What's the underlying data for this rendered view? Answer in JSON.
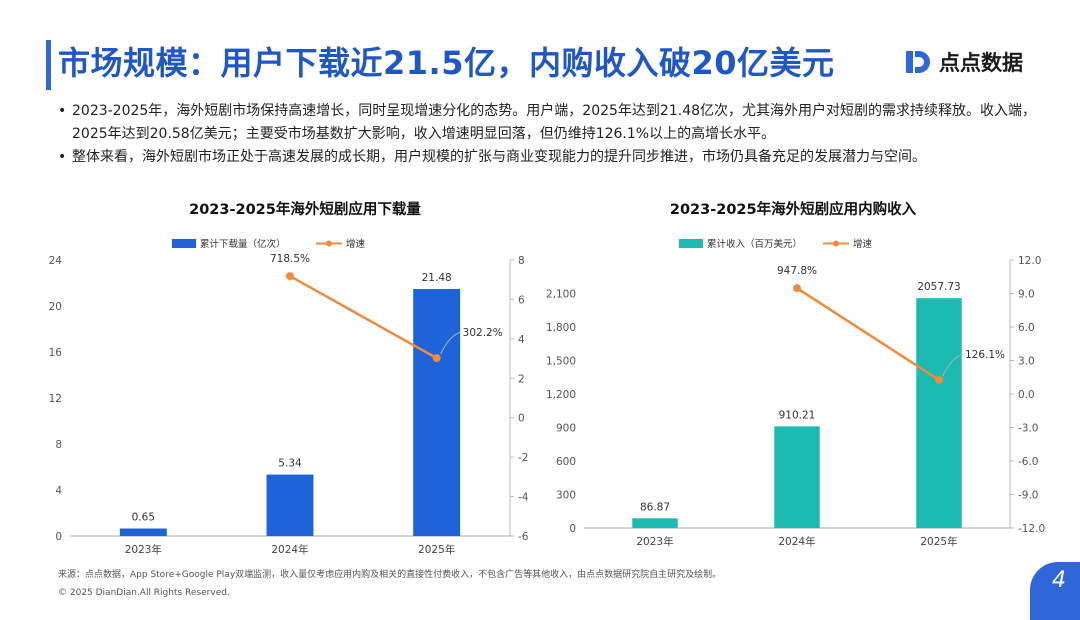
{
  "header": {
    "title": "市场规模：用户下载近21.5亿，内购收入破20亿美元",
    "logo_text": "点点数据",
    "accent_color": "#2f66d8"
  },
  "bullets": [
    "2023-2025年，海外短剧市场保持高速增长，同时呈现增速分化的态势。用户端，2025年达到21.48亿次，尤其海外用户对短剧的需求持续释放。收入端，2025年达到20.58亿美元；主要受市场基数扩大影响，收入增速明显回落，但仍维持126.1%以上的高增长水平。",
    "整体来看，海外短剧市场正处于高速发展的成长期，用户规模的扩张与商业变现能力的提升同步推进，市场仍具备充足的发展潜力与空间。"
  ],
  "chart_data": [
    {
      "type": "bar",
      "title": "2023-2025年海外短剧应用下载量",
      "categories": [
        "2023年",
        "2024年",
        "2025年"
      ],
      "series": [
        {
          "name": "累计下载量（亿次）",
          "type": "bar",
          "axis": "left",
          "color": "#1f63d9",
          "values": [
            0.65,
            5.34,
            21.48
          ],
          "labels": [
            "0.65",
            "5.34",
            "21.48"
          ]
        },
        {
          "name": "增速",
          "type": "line",
          "axis": "right",
          "color": "#f08a3c",
          "values": [
            null,
            7.185,
            3.022
          ],
          "labels": [
            "",
            "718.5%",
            "302.2%"
          ]
        }
      ],
      "ylim": [
        0,
        24
      ],
      "yticks": [
        "0",
        "4",
        "8",
        "12",
        "16",
        "20",
        "24"
      ],
      "y2lim": [
        -6,
        8
      ],
      "y2ticks": [
        "-6",
        "-4",
        "-2",
        "0",
        "2",
        "4",
        "6",
        "8"
      ],
      "legend": "top-center"
    },
    {
      "type": "bar",
      "title": "2023-2025年海外短剧应用内购收入",
      "categories": [
        "2023年",
        "2024年",
        "2025年"
      ],
      "series": [
        {
          "name": "累计收入（百万美元）",
          "type": "bar",
          "axis": "left",
          "color": "#1dbab2",
          "values": [
            86.87,
            910.21,
            2057.73
          ],
          "labels": [
            "86.87",
            "910.21",
            "2057.73"
          ]
        },
        {
          "name": "增速",
          "type": "line",
          "axis": "right",
          "color": "#f08a3c",
          "values": [
            null,
            9.478,
            1.261
          ],
          "labels": [
            "",
            "947.8%",
            "126.1%"
          ]
        }
      ],
      "ylim": [
        0,
        2400
      ],
      "yticks": [
        "0",
        "300",
        "600",
        "900",
        "1,200",
        "1,500",
        "1,800",
        "2,100"
      ],
      "y2lim": [
        -12,
        12
      ],
      "y2ticks": [
        "-12.0",
        "-9.0",
        "-6.0",
        "-3.0",
        "0.0",
        "3.0",
        "6.0",
        "9.0",
        "12.0"
      ],
      "legend": "top-center"
    }
  ],
  "footer": {
    "source": "来源：点点数据，App Store+Google Play双端监测，收入量仅考虑应用内购及相关的直接性付费收入，不包含广告等其他收入，由点点数据研究院自主研究及绘制。",
    "copyright": "© 2025 DianDian.All Rights Reserved.",
    "page_number": "4"
  }
}
